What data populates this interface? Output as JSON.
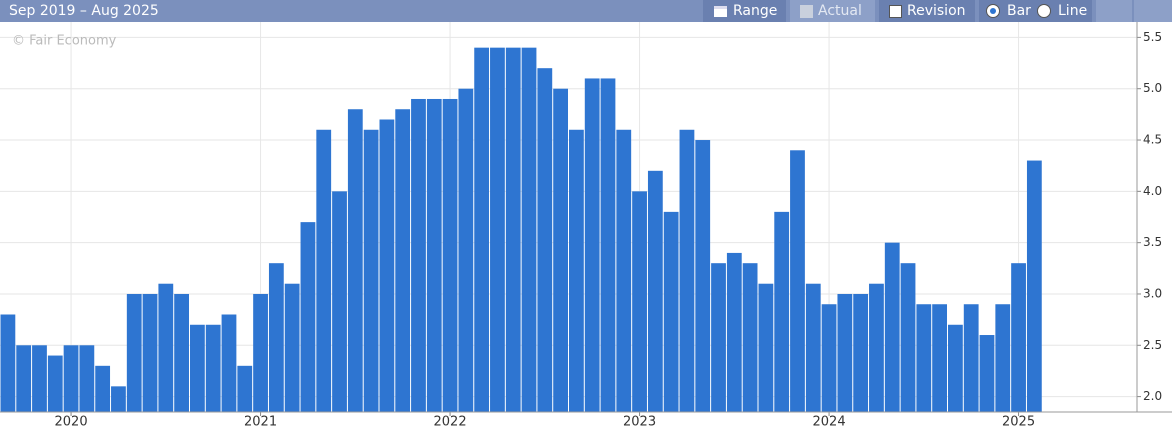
{
  "ui": {
    "date_range": "Sep 2019 – Aug 2025",
    "range_button": "Range",
    "actual_toggle": "Actual",
    "revision_toggle": "Revision",
    "bar_option": "Bar",
    "line_option": "Line"
  },
  "chart_data": {
    "type": "bar",
    "annotation": "© Fair Economy",
    "categories": [
      null,
      null,
      null,
      null,
      "2020",
      null,
      null,
      null,
      null,
      null,
      null,
      null,
      null,
      null,
      null,
      null,
      "2021",
      null,
      null,
      null,
      null,
      null,
      null,
      null,
      null,
      null,
      null,
      null,
      "2022",
      null,
      null,
      null,
      null,
      null,
      null,
      null,
      null,
      null,
      null,
      null,
      "2023",
      null,
      null,
      null,
      null,
      null,
      null,
      null,
      null,
      null,
      null,
      null,
      "2024",
      null,
      null,
      null,
      null,
      null,
      null,
      null,
      null,
      null,
      null,
      null,
      "2025",
      null,
      null,
      null,
      null,
      null,
      null,
      null
    ],
    "values": [
      2.8,
      2.5,
      2.5,
      2.4,
      2.5,
      2.5,
      2.3,
      2.1,
      3,
      3,
      3.1,
      3,
      2.7,
      2.7,
      2.8,
      2.3,
      3,
      3.3,
      3.1,
      3.7,
      4.6,
      4,
      4.8,
      4.6,
      4.7,
      4.8,
      4.9,
      4.9,
      4.9,
      5,
      5.4,
      5.4,
      5.4,
      5.4,
      5.2,
      5,
      4.6,
      5.1,
      5.1,
      4.6,
      4,
      4.2,
      3.8,
      4.6,
      4.5,
      3.3,
      3.4,
      3.3,
      3.1,
      3.8,
      4.4,
      3.1,
      2.9,
      3,
      3,
      3.1,
      3.5,
      3.3,
      2.9,
      2.9,
      2.7,
      2.9,
      2.6,
      2.9,
      3.3,
      4.3,
      null,
      null,
      null,
      null,
      null,
      null
    ],
    "color": "#2e75d1",
    "ylim": [
      1.85,
      5.65
    ],
    "yticks": [
      {
        "value": 2,
        "label": "2.0"
      },
      2.5,
      {
        "value": 3,
        "label": "3.0"
      },
      3.5,
      {
        "value": 4,
        "label": "4.0"
      },
      4.5,
      {
        "value": 5,
        "label": "5.0"
      },
      5.5
    ],
    "grid": true
  }
}
